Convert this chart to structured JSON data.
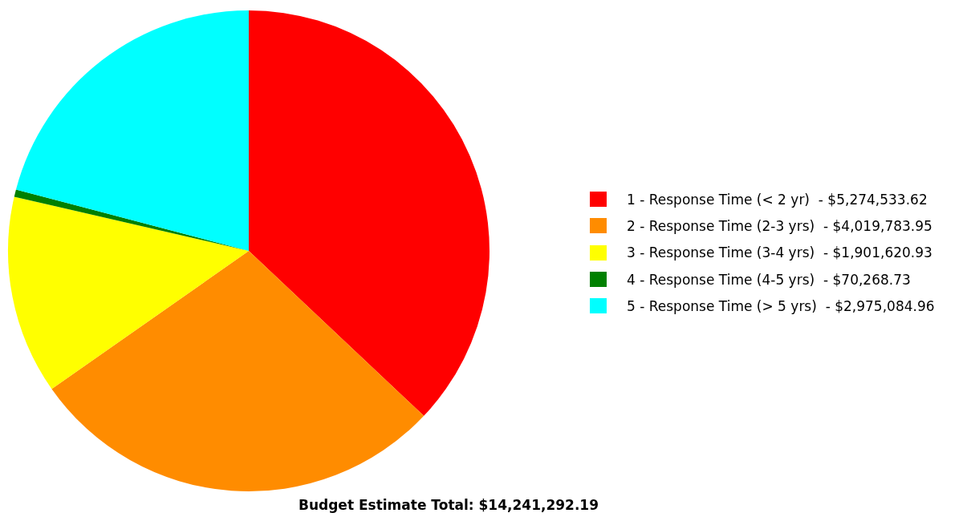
{
  "chart_data": {
    "type": "pie",
    "categories": [
      "1 - Response Time (< 2 yr)",
      "2 - Response Time (2-3 yrs)",
      "3 - Response Time (3-4 yrs)",
      "4 - Response Time (4-5 yrs)",
      "5 - Response Time (> 5 yrs)"
    ],
    "values": [
      5274533.62,
      4019783.95,
      1901620.93,
      70268.73,
      2975084.96
    ],
    "value_labels": [
      "$5,274,533.62",
      "$4,019,783.95",
      "$1,901,620.93",
      "$70,268.73",
      "$2,975,084.96"
    ],
    "colors": [
      "#ff0000",
      "#ff8c00",
      "#ffff00",
      "#008000",
      "#00ffff"
    ],
    "legend": "right",
    "annotations": [
      "Budget Estimate Total: $14,241,292.19"
    ]
  }
}
